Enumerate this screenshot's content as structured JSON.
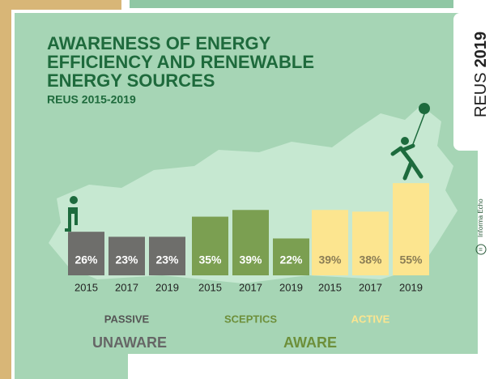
{
  "chart_data": {
    "type": "bar",
    "title": [
      "AWARENESS OF ENERGY",
      "EFFICIENCY AND RENEWABLE",
      "ENERGY SOURCES"
    ],
    "subtitle": "REUS 2015-2019",
    "categories": [
      "2015",
      "2017",
      "2019"
    ],
    "series": [
      {
        "name": "PASSIVE",
        "color": "#6e6e6b",
        "label_color": "#ffffff",
        "values": [
          26,
          23,
          23
        ],
        "value_labels": [
          "26%",
          "23%",
          "23%"
        ]
      },
      {
        "name": "SCEPTICS",
        "color": "#7b9f51",
        "label_color": "#ffffff",
        "values": [
          35,
          39,
          22
        ],
        "value_labels": [
          "35%",
          "39%",
          "22%"
        ]
      },
      {
        "name": "ACTIVE",
        "color": "#fce58f",
        "label_color": "#8a7d55",
        "values": [
          39,
          38,
          55
        ],
        "value_labels": [
          "39%",
          "38%",
          "55%"
        ]
      }
    ],
    "supergroups": [
      "UNAWARE",
      "AWARE"
    ],
    "badge": [
      "REUS",
      "2019"
    ],
    "source_logo": "iii",
    "source": "Informa Echo"
  }
}
